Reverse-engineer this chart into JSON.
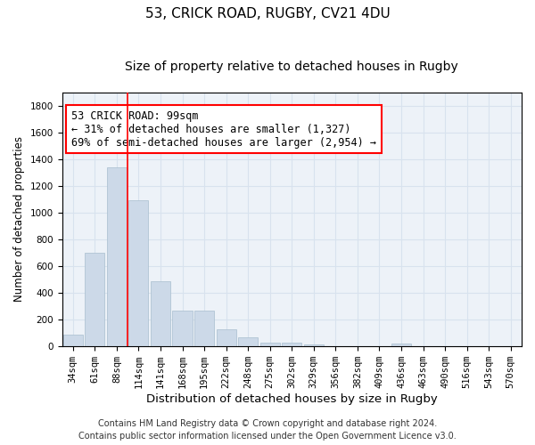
{
  "title_line1": "53, CRICK ROAD, RUGBY, CV21 4DU",
  "title_line2": "Size of property relative to detached houses in Rugby",
  "xlabel": "Distribution of detached houses by size in Rugby",
  "ylabel": "Number of detached properties",
  "categories": [
    "34sqm",
    "61sqm",
    "88sqm",
    "114sqm",
    "141sqm",
    "168sqm",
    "195sqm",
    "222sqm",
    "248sqm",
    "275sqm",
    "302sqm",
    "329sqm",
    "356sqm",
    "382sqm",
    "409sqm",
    "436sqm",
    "463sqm",
    "490sqm",
    "516sqm",
    "543sqm",
    "570sqm"
  ],
  "values": [
    90,
    700,
    1340,
    1090,
    490,
    265,
    265,
    130,
    65,
    30,
    30,
    15,
    0,
    0,
    0,
    20,
    0,
    0,
    0,
    0,
    0
  ],
  "bar_color": "#ccd9e8",
  "bar_edge_color": "#a8bece",
  "grid_color": "#d8e2ee",
  "annotation_text_line1": "53 CRICK ROAD: 99sqm",
  "annotation_text_line2": "← 31% of detached houses are smaller (1,327)",
  "annotation_text_line3": "69% of semi-detached houses are larger (2,954) →",
  "footer_line1": "Contains HM Land Registry data © Crown copyright and database right 2024.",
  "footer_line2": "Contains public sector information licensed under the Open Government Licence v3.0.",
  "ylim": [
    0,
    1900
  ],
  "yticks": [
    0,
    200,
    400,
    600,
    800,
    1000,
    1200,
    1400,
    1600,
    1800
  ],
  "red_line_x": 2.5,
  "title_fontsize": 11,
  "subtitle_fontsize": 10,
  "xlabel_fontsize": 9.5,
  "ylabel_fontsize": 8.5,
  "tick_fontsize": 7.5,
  "footer_fontsize": 7,
  "annotation_fontsize": 8.5,
  "bg_color": "#edf2f8"
}
